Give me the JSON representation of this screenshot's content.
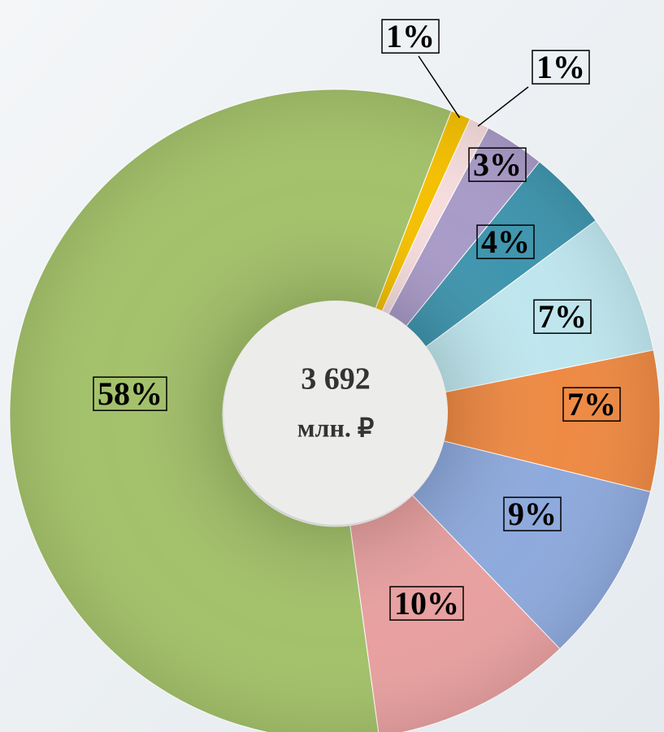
{
  "chart_data": {
    "type": "donut",
    "categories": [
      null,
      null,
      null,
      null,
      null,
      null,
      null,
      null,
      null
    ],
    "values": [
      1,
      1,
      3,
      4,
      7,
      7,
      9,
      10,
      58
    ],
    "value_labels": [
      "1%",
      "1%",
      "3%",
      "4%",
      "7%",
      "7%",
      "9%",
      "10%",
      "58%"
    ],
    "colors": [
      "#f5c000",
      "#f6dcdc",
      "#a99bc8",
      "#3f95ae",
      "#bfe6ee",
      "#ee8a44",
      "#8ea9dc",
      "#e8a0a0",
      "#a3c16a"
    ],
    "center_text": [
      "3 692",
      "млн. ₽"
    ]
  }
}
